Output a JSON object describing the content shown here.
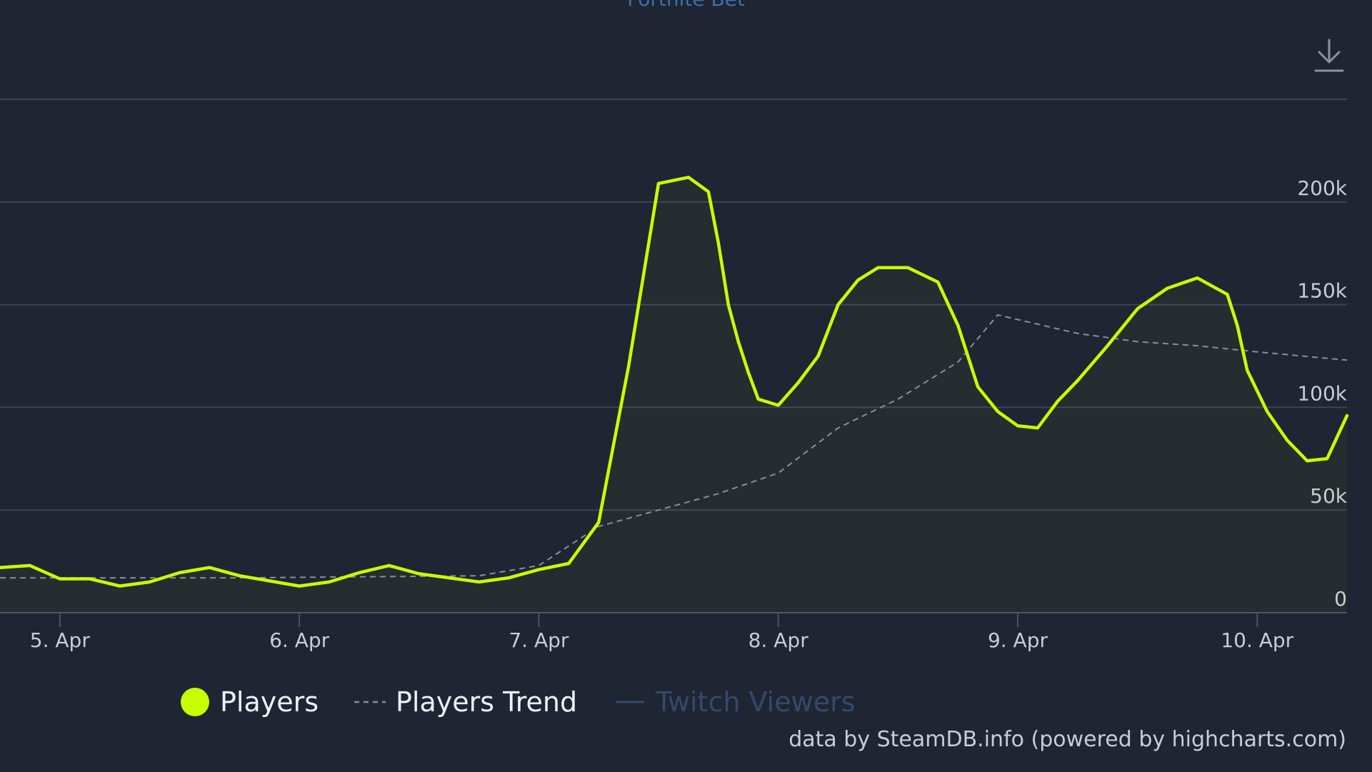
{
  "header": {
    "title": "Fortnite Bet"
  },
  "toolbar": {
    "download_icon": "download-icon"
  },
  "legend": {
    "players_label": "Players",
    "trend_label": "Players Trend",
    "twitch_label": "Twitch Viewers"
  },
  "credits": "data by SteamDB.info (powered by highcharts.com)",
  "colors": {
    "background": "#1f2532",
    "players": "#c7ff00",
    "trend": "#8a8f98",
    "twitch": "#34496a",
    "grid": "#3b4456",
    "text": "#c7ccd5"
  },
  "chart_data": {
    "type": "line",
    "title": "",
    "xlabel": "",
    "ylabel": "",
    "ylim": [
      0,
      250000
    ],
    "x_range": [
      "2024-04-04 18:00",
      "2024-04-10 09:00"
    ],
    "x_ticks": [
      "5. Apr",
      "6. Apr",
      "7. Apr",
      "8. Apr",
      "9. Apr",
      "10. Apr"
    ],
    "y_ticks": [
      "0",
      "50k",
      "100k",
      "150k",
      "200k"
    ],
    "y_tick_values": [
      0,
      50000,
      100000,
      150000,
      200000
    ],
    "grid": true,
    "legend_position": "bottom",
    "series": [
      {
        "name": "Players",
        "style": "solid",
        "x": [
          "2024-04-04 18:00",
          "2024-04-04 21:00",
          "2024-04-05 00:00",
          "2024-04-05 03:00",
          "2024-04-05 06:00",
          "2024-04-05 09:00",
          "2024-04-05 12:00",
          "2024-04-05 15:00",
          "2024-04-05 18:00",
          "2024-04-05 21:00",
          "2024-04-06 00:00",
          "2024-04-06 03:00",
          "2024-04-06 06:00",
          "2024-04-06 09:00",
          "2024-04-06 12:00",
          "2024-04-06 15:00",
          "2024-04-06 18:00",
          "2024-04-06 21:00",
          "2024-04-07 00:00",
          "2024-04-07 03:00",
          "2024-04-07 06:00",
          "2024-04-07 09:00",
          "2024-04-07 12:00",
          "2024-04-07 15:00",
          "2024-04-07 17:00",
          "2024-04-07 18:00",
          "2024-04-07 19:00",
          "2024-04-07 20:00",
          "2024-04-07 21:00",
          "2024-04-07 22:00",
          "2024-04-08 00:00",
          "2024-04-08 02:00",
          "2024-04-08 04:00",
          "2024-04-08 06:00",
          "2024-04-08 08:00",
          "2024-04-08 10:00",
          "2024-04-08 13:00",
          "2024-04-08 16:00",
          "2024-04-08 18:00",
          "2024-04-08 20:00",
          "2024-04-08 22:00",
          "2024-04-09 00:00",
          "2024-04-09 02:00",
          "2024-04-09 04:00",
          "2024-04-09 06:00",
          "2024-04-09 09:00",
          "2024-04-09 12:00",
          "2024-04-09 15:00",
          "2024-04-09 18:00",
          "2024-04-09 21:00",
          "2024-04-09 22:00",
          "2024-04-09 23:00",
          "2024-04-10 01:00",
          "2024-04-10 03:00",
          "2024-04-10 05:00",
          "2024-04-10 07:00",
          "2024-04-10 09:00"
        ],
        "values": [
          22000,
          23000,
          16500,
          16500,
          13000,
          15000,
          19500,
          22000,
          18000,
          15500,
          13000,
          15000,
          19500,
          23000,
          19000,
          17000,
          15000,
          17000,
          21000,
          24000,
          44000,
          120000,
          209000,
          212000,
          205000,
          180000,
          150000,
          132000,
          117000,
          104000,
          101000,
          112000,
          125000,
          150000,
          162000,
          168000,
          168000,
          161000,
          140000,
          110000,
          98000,
          91000,
          90000,
          103000,
          113000,
          130000,
          148000,
          158000,
          163000,
          155000,
          140000,
          118000,
          98000,
          84000,
          74000,
          75000,
          96000
        ]
      },
      {
        "name": "Players Trend",
        "style": "dashed",
        "x": [
          "2024-04-04 18:00",
          "2024-04-05 06:00",
          "2024-04-05 18:00",
          "2024-04-06 06:00",
          "2024-04-06 18:00",
          "2024-04-07 00:00",
          "2024-04-07 06:00",
          "2024-04-07 12:00",
          "2024-04-07 18:00",
          "2024-04-08 00:00",
          "2024-04-08 06:00",
          "2024-04-08 12:00",
          "2024-04-08 18:00",
          "2024-04-08 22:00",
          "2024-04-09 06:00",
          "2024-04-09 12:00",
          "2024-04-09 18:00",
          "2024-04-10 00:00",
          "2024-04-10 09:00"
        ],
        "values": [
          17000,
          17000,
          17000,
          17500,
          18000,
          23000,
          42000,
          50000,
          58000,
          68000,
          90000,
          104000,
          122000,
          145000,
          136000,
          132000,
          130000,
          127000,
          123000
        ]
      },
      {
        "name": "Twitch Viewers",
        "style": "hidden",
        "x": [],
        "values": []
      }
    ]
  }
}
